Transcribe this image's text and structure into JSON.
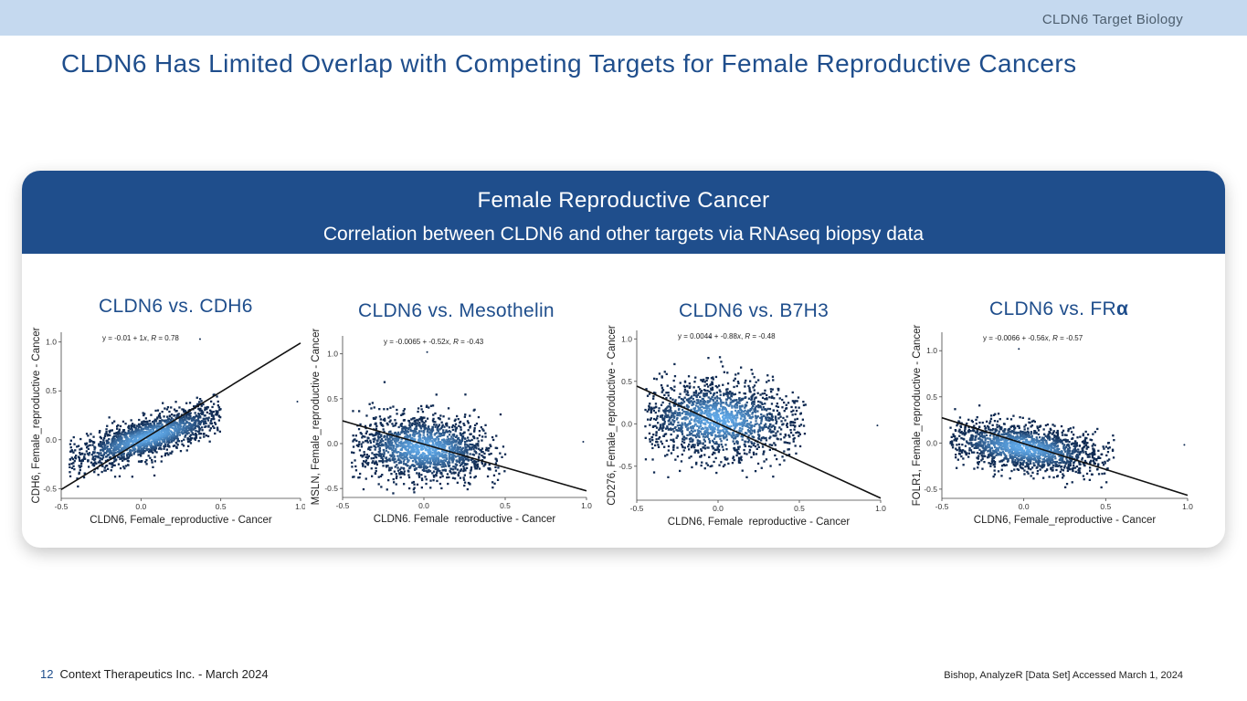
{
  "header": {
    "section": "CLDN6 Target Biology"
  },
  "title": "CLDN6 Has Limited Overlap with Competing Targets for Female Reproductive Cancers",
  "panel": {
    "title": "Female Reproductive Cancer",
    "subtitle": "Correlation between CLDN6 and other targets via RNAseq biopsy data"
  },
  "chart_titles": [
    {
      "main": "CLDN6 vs. CDH6",
      "suffix": ""
    },
    {
      "main": "CLDN6 vs. Mesothelin",
      "suffix": ""
    },
    {
      "main": "CLDN6 vs. B7H3",
      "suffix": ""
    },
    {
      "main": "CLDN6 vs. FR",
      "suffix": "α"
    }
  ],
  "chart_data": [
    {
      "type": "scatter",
      "xlabel": "CLDN6, Female_reproductive - Cancer",
      "ylabel": "CDH6, Female_reproductive - Cancer",
      "xlim": [
        -0.5,
        1.0
      ],
      "ylim": [
        -0.6,
        1.1
      ],
      "xticks": [
        -0.5,
        0.0,
        0.5,
        1.0
      ],
      "yticks": [
        -0.5,
        0.0,
        0.5,
        1.0
      ],
      "xtick_labels": [
        "-0.5",
        "0.0",
        "0.5",
        "1.0"
      ],
      "ytick_labels": [
        "-0.5",
        "0.0",
        "0.5",
        "1.0"
      ],
      "annotation": {
        "prefix": "y = -0.01 + 1",
        "x": "x",
        "mid": ",  ",
        "r": "R",
        "suffix": " = 0.78"
      },
      "fit": {
        "intercept": -0.01,
        "slope": 1.0,
        "r": 0.78
      },
      "density": {
        "center": [
          0.05,
          0.03
        ],
        "spread_along": 0.28,
        "spread_across": 0.09,
        "x_range": [
          -0.45,
          0.5
        ]
      },
      "outliers": [
        [
          0.37,
          1.03
        ],
        [
          0.98,
          0.39
        ]
      ]
    },
    {
      "type": "scatter",
      "xlabel": "CLDN6, Female_reproductive - Cancer",
      "ylabel": "MSLN, Female_reproductive - Cancer",
      "xlim": [
        -0.5,
        1.0
      ],
      "ylim": [
        -0.6,
        1.2
      ],
      "xticks": [
        -0.5,
        0.0,
        0.5,
        1.0
      ],
      "yticks": [
        -0.5,
        0.0,
        0.5,
        1.0
      ],
      "xtick_labels": [
        "-0.5",
        "0.0",
        "0.5",
        "1.0"
      ],
      "ytick_labels": [
        "-0.5",
        "0.0",
        "0.5",
        "1.0"
      ],
      "annotation": {
        "prefix": "y = -0.0065 + -0.52",
        "x": "x",
        "mid": ",  ",
        "r": "R",
        "suffix": " = -0.43"
      },
      "fit": {
        "intercept": -0.0065,
        "slope": -0.52,
        "r": -0.43
      },
      "density": {
        "center": [
          0.0,
          -0.05
        ],
        "spread_along": 0.22,
        "spread_across": 0.18,
        "x_range": [
          -0.45,
          0.5
        ]
      },
      "outliers": [
        [
          0.02,
          1.02
        ],
        [
          0.98,
          0.02
        ]
      ]
    },
    {
      "type": "scatter",
      "xlabel": "CLDN6, Female_reproductive - Cancer",
      "ylabel": "CD276, Female_reproductive - Cancer",
      "xlim": [
        -0.5,
        1.0
      ],
      "ylim": [
        -0.9,
        1.1
      ],
      "xticks": [
        -0.5,
        0.0,
        0.5,
        1.0
      ],
      "yticks": [
        -0.5,
        0.0,
        0.5,
        1.0
      ],
      "xtick_labels": [
        "-0.5",
        "0.0",
        "0.5",
        "1.0"
      ],
      "ytick_labels": [
        "-0.5",
        "0.0",
        "0.5",
        "1.0"
      ],
      "annotation": {
        "prefix": "y = 0.0044 + -0.88",
        "x": "x",
        "mid": ",  ",
        "r": "R",
        "suffix": " = -0.48"
      },
      "fit": {
        "intercept": 0.0044,
        "slope": -0.88,
        "r": -0.48
      },
      "density": {
        "center": [
          0.0,
          0.05
        ],
        "spread_along": 0.25,
        "spread_across": 0.22,
        "x_range": [
          -0.45,
          0.55
        ]
      },
      "outliers": [
        [
          -0.05,
          1.02
        ],
        [
          0.98,
          -0.02
        ]
      ]
    },
    {
      "type": "scatter",
      "xlabel": "CLDN6, Female_reproductive - Cancer",
      "ylabel": "FOLR1, Female_reproductive - Cancer",
      "xlim": [
        -0.5,
        1.0
      ],
      "ylim": [
        -0.6,
        1.2
      ],
      "xticks": [
        -0.5,
        0.0,
        0.5,
        1.0
      ],
      "yticks": [
        -0.5,
        0.0,
        0.5,
        1.0
      ],
      "xtick_labels": [
        "-0.5",
        "0.0",
        "0.5",
        "1.0"
      ],
      "ytick_labels": [
        "-0.5",
        "0.0",
        "0.5",
        "1.0"
      ],
      "annotation": {
        "prefix": "y = -0.0066 + -0.56",
        "x": "x",
        "mid": ",  ",
        "r": "R",
        "suffix": " = -0.57"
      },
      "fit": {
        "intercept": -0.0066,
        "slope": -0.56,
        "r": -0.57
      },
      "density": {
        "center": [
          0.0,
          -0.05
        ],
        "spread_along": 0.25,
        "spread_across": 0.12,
        "x_range": [
          -0.45,
          0.55
        ]
      },
      "outliers": [
        [
          -0.03,
          1.02
        ],
        [
          0.98,
          -0.02
        ]
      ]
    }
  ],
  "colors": {
    "accent": "#1f4e8c",
    "topbar": "#c5d9ef",
    "density_low": "#0f2a52",
    "density_high": "#5fa8e8"
  },
  "footer": {
    "page": "12",
    "company": "Context Therapeutics Inc. - March 2024",
    "source": "Bishop, AnalyzeR [Data Set] Accessed March 1, 2024"
  }
}
